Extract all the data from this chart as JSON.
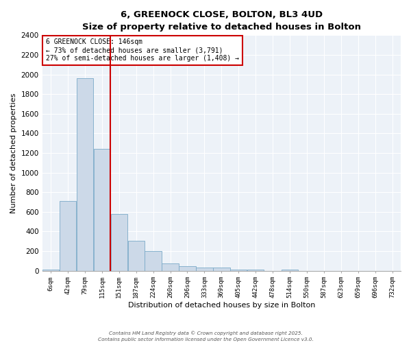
{
  "title": "6, GREENOCK CLOSE, BOLTON, BL3 4UD",
  "subtitle": "Size of property relative to detached houses in Bolton",
  "xlabel": "Distribution of detached houses by size in Bolton",
  "ylabel": "Number of detached properties",
  "bar_color": "#ccd9e8",
  "bar_edge_color": "#7aaac8",
  "categories": [
    "6sqm",
    "42sqm",
    "79sqm",
    "115sqm",
    "151sqm",
    "187sqm",
    "224sqm",
    "260sqm",
    "296sqm",
    "333sqm",
    "369sqm",
    "405sqm",
    "442sqm",
    "478sqm",
    "514sqm",
    "550sqm",
    "587sqm",
    "623sqm",
    "659sqm",
    "696sqm",
    "732sqm"
  ],
  "values": [
    10,
    710,
    1960,
    1240,
    575,
    305,
    200,
    75,
    45,
    35,
    35,
    10,
    10,
    0,
    10,
    0,
    0,
    0,
    0,
    0,
    0
  ],
  "ylim": [
    0,
    2400
  ],
  "yticks": [
    0,
    200,
    400,
    600,
    800,
    1000,
    1200,
    1400,
    1600,
    1800,
    2000,
    2200,
    2400
  ],
  "vline_index": 3.5,
  "vline_color": "#cc0000",
  "annotation_title": "6 GREENOCK CLOSE: 146sqm",
  "annotation_line1": "← 73% of detached houses are smaller (3,791)",
  "annotation_line2": "27% of semi-detached houses are larger (1,408) →",
  "annotation_box_color": "#cc0000",
  "footer_line1": "Contains HM Land Registry data © Crown copyright and database right 2025.",
  "footer_line2": "Contains public sector information licensed under the Open Government Licence v3.0.",
  "background_color": "#edf2f8",
  "grid_color": "#ffffff",
  "title_fontsize": 9.5,
  "subtitle_fontsize": 8.5
}
